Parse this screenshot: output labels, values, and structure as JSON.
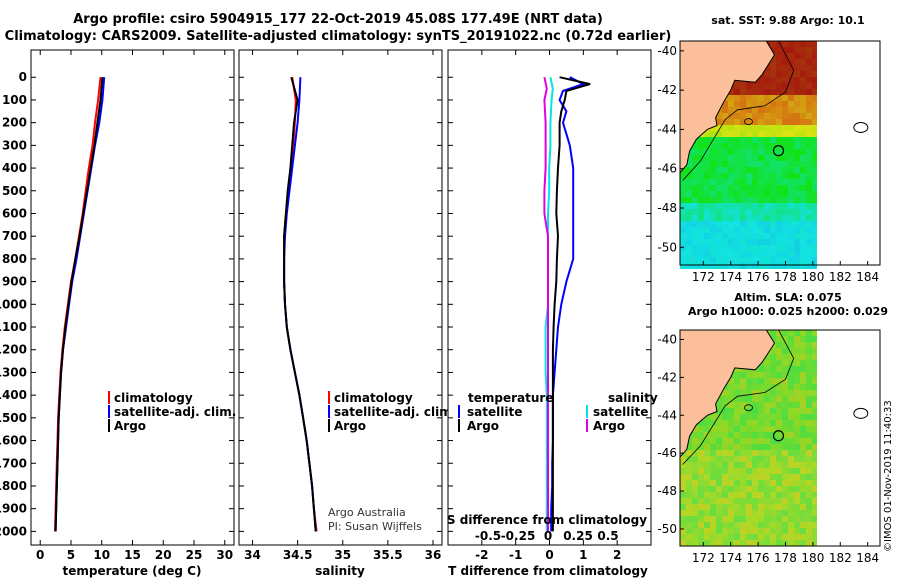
{
  "header": {
    "line1": "Argo profile: csiro 5904915_177 22-Oct-2019 45.08S 177.49E (NRT data)",
    "line2": "Climatology: CARS2009. Satellite-adjusted climatology: synTS_20191022.nc (0.72d earlier)"
  },
  "colors": {
    "red": "#ff0000",
    "blue": "#0000ff",
    "black": "#000000",
    "cyan": "#00e5e5",
    "magenta": "#e000e0"
  },
  "depth_axis": {
    "ticks": [
      "0",
      "100",
      "200",
      "300",
      "400",
      "500",
      "600",
      "700",
      "800",
      "900",
      "1000",
      "1100",
      "1200",
      "1300",
      "1400",
      "1500",
      "1600",
      "1700",
      "1800",
      "1900",
      "2000"
    ],
    "values": [
      0,
      100,
      200,
      300,
      400,
      500,
      600,
      700,
      800,
      900,
      1000,
      1100,
      1200,
      1300,
      1400,
      1500,
      1600,
      1700,
      1800,
      1900,
      2000
    ],
    "range": [
      -120,
      2060
    ]
  },
  "chart_data": [
    {
      "type": "line",
      "panel": "temperature",
      "xlabel": "temperature (deg C)",
      "xlim": [
        -1.5,
        31.5
      ],
      "xticks": [
        0,
        5,
        10,
        15,
        20,
        25,
        30
      ],
      "xtick_labels": [
        "0",
        "5",
        "10",
        "15",
        "20",
        "25",
        "30"
      ],
      "legend": [
        "climatology",
        "satellite-adj. clim.",
        "Argo"
      ],
      "series": [
        {
          "name": "climatology",
          "color": "red",
          "depth": [
            0,
            100,
            200,
            300,
            400,
            500,
            600,
            700,
            800,
            900,
            1000,
            1100,
            1200,
            1300,
            1400,
            1500,
            1600,
            1700,
            1800,
            1900,
            2000
          ],
          "values": [
            9.8,
            9.4,
            8.9,
            8.5,
            7.9,
            7.4,
            6.9,
            6.3,
            5.7,
            5.0,
            4.5,
            4.0,
            3.6,
            3.3,
            3.1,
            2.9,
            2.8,
            2.7,
            2.6,
            2.5,
            2.4
          ]
        },
        {
          "name": "satellite-adj. clim.",
          "color": "blue",
          "depth": [
            0,
            100,
            200,
            300,
            400,
            500,
            600,
            700,
            800,
            900,
            1000,
            1100,
            1200,
            1300,
            1400,
            1500,
            1600,
            1700,
            1800,
            1900,
            2000
          ],
          "values": [
            10.4,
            10.1,
            9.6,
            8.9,
            8.3,
            7.7,
            7.1,
            6.5,
            5.9,
            5.2,
            4.7,
            4.2,
            3.7,
            3.4,
            3.2,
            3.0,
            2.9,
            2.8,
            2.7,
            2.6,
            2.5
          ]
        },
        {
          "name": "Argo",
          "color": "black",
          "depth": [
            0,
            100,
            200,
            300,
            400,
            500,
            600,
            700,
            800,
            900,
            1000,
            1100,
            1200,
            1300,
            1400,
            1500,
            1600,
            1700,
            1800,
            1900,
            2000
          ],
          "values": [
            10.1,
            9.8,
            9.3,
            8.8,
            8.2,
            7.6,
            7.0,
            6.4,
            5.7,
            5.1,
            4.6,
            4.1,
            3.7,
            3.4,
            3.2,
            3.0,
            2.9,
            2.8,
            2.7,
            2.6,
            2.5
          ]
        }
      ]
    },
    {
      "type": "line",
      "panel": "salinity",
      "xlabel": "salinity",
      "xlim": [
        33.85,
        36.1
      ],
      "xticks": [
        34,
        34.5,
        35,
        35.5,
        36
      ],
      "xtick_labels": [
        "34",
        "34.5",
        "35",
        "35.5",
        "36"
      ],
      "legend": [
        "climatology",
        "satellite-adj. clim.",
        "Argo"
      ],
      "credit1": "Argo Australia",
      "credit2": "PI: Susan Wijffels",
      "series": [
        {
          "name": "climatology",
          "color": "red",
          "depth": [
            0,
            100,
            200,
            300,
            400,
            500,
            600,
            700,
            800,
            900,
            1000,
            1100,
            1200,
            1300,
            1400,
            1500,
            1600,
            1700,
            1800,
            1900,
            2000
          ],
          "values": [
            34.44,
            34.48,
            34.47,
            34.45,
            34.42,
            34.4,
            34.37,
            34.35,
            34.35,
            34.35,
            34.36,
            34.38,
            34.42,
            34.47,
            34.52,
            34.56,
            34.6,
            34.63,
            34.66,
            34.68,
            34.71
          ]
        },
        {
          "name": "satellite-adj. clim.",
          "color": "blue",
          "depth": [
            0,
            100,
            200,
            300,
            400,
            500,
            600,
            700,
            800,
            900,
            1000,
            1100,
            1200,
            1300,
            1400,
            1500,
            1600,
            1700,
            1800,
            1900,
            2000
          ],
          "values": [
            34.53,
            34.52,
            34.5,
            34.47,
            34.44,
            34.41,
            34.38,
            34.36,
            34.35,
            34.35,
            34.36,
            34.38,
            34.42,
            34.47,
            34.52,
            34.56,
            34.6,
            34.63,
            34.66,
            34.68,
            34.7
          ]
        },
        {
          "name": "Argo",
          "color": "black",
          "depth": [
            0,
            100,
            200,
            300,
            400,
            500,
            600,
            700,
            800,
            900,
            1000,
            1100,
            1200,
            1300,
            1400,
            1500,
            1600,
            1700,
            1800,
            1900,
            2000
          ],
          "values": [
            34.43,
            34.5,
            34.46,
            34.44,
            34.42,
            34.39,
            34.37,
            34.35,
            34.35,
            34.35,
            34.36,
            34.38,
            34.42,
            34.47,
            34.52,
            34.56,
            34.6,
            34.63,
            34.66,
            34.68,
            34.7
          ]
        }
      ]
    },
    {
      "type": "line",
      "panel": "difference",
      "xlabel": "T difference from climatology",
      "xlim": [
        -3,
        3
      ],
      "xticks": [
        -2,
        -1,
        0,
        1,
        2
      ],
      "xtick_labels": [
        "-2",
        "-1",
        "0",
        "1",
        "2"
      ],
      "s_axis_title": "S difference from climatology",
      "s_ticks": [
        -0.5,
        -0.25,
        0,
        0.25,
        0.5
      ],
      "s_tick_labels": [
        "-0.5",
        "-0.25",
        "0",
        "0.25",
        "0.5"
      ],
      "legend_left_title": "temperature",
      "legend_right_title": "salinity",
      "legend_left": [
        "satellite",
        "Argo"
      ],
      "legend_right": [
        "satellite",
        "Argo"
      ],
      "series": [
        {
          "name": "T satellite",
          "color": "blue",
          "depth": [
            0,
            30,
            60,
            100,
            150,
            200,
            300,
            400,
            500,
            600,
            700,
            800,
            900,
            1000,
            1100,
            1200,
            1300,
            1400,
            1500,
            1600,
            1700,
            1800,
            1900,
            2000
          ],
          "values": [
            0.6,
            1.0,
            0.4,
            0.3,
            0.5,
            0.4,
            0.6,
            0.7,
            0.7,
            0.7,
            0.7,
            0.7,
            0.5,
            0.35,
            0.25,
            0.2,
            0.15,
            0.1,
            0.1,
            0.1,
            0.08,
            0.08,
            0.05,
            0.05
          ]
        },
        {
          "name": "T Argo",
          "color": "black",
          "depth": [
            0,
            30,
            60,
            100,
            150,
            200,
            300,
            400,
            500,
            600,
            700,
            800,
            900,
            1000,
            1100,
            1200,
            1300,
            1400,
            1500,
            1600,
            1700,
            1800,
            1900,
            2000
          ],
          "values": [
            0.3,
            1.2,
            0.5,
            0.45,
            0.35,
            0.3,
            0.3,
            0.25,
            0.22,
            0.2,
            0.25,
            0.22,
            0.2,
            0.15,
            0.12,
            0.1,
            0.1,
            0.1,
            0.1,
            0.1,
            0.1,
            0.1,
            0.1,
            0.1
          ]
        },
        {
          "name": "S satellite",
          "color": "cyan",
          "depth": [
            0,
            50,
            100,
            200,
            300,
            400,
            500,
            600,
            700,
            800,
            900,
            1000,
            1100,
            1200,
            1300,
            1400,
            1500,
            1600,
            1700,
            1800,
            1900,
            2000
          ],
          "values": [
            0.02,
            0.04,
            0.03,
            0.02,
            0.02,
            0.01,
            0.01,
            0.0,
            0.0,
            0.0,
            0.0,
            0.0,
            -0.02,
            -0.02,
            -0.02,
            -0.01,
            -0.01,
            -0.01,
            -0.01,
            -0.01,
            -0.01,
            -0.01
          ]
        },
        {
          "name": "S Argo",
          "color": "magenta",
          "depth": [
            0,
            50,
            100,
            200,
            300,
            400,
            500,
            600,
            700,
            800,
            900,
            1000,
            1100,
            1200,
            1300,
            1400,
            1500,
            1600,
            1700,
            1800,
            1900,
            2000
          ],
          "values": [
            -0.03,
            -0.01,
            -0.03,
            -0.02,
            -0.02,
            -0.02,
            -0.03,
            -0.03,
            0.0,
            0.0,
            0.0,
            0.0,
            0.0,
            0.0,
            0.0,
            0.0,
            0.0,
            0.0,
            0.0,
            0.0,
            0.0,
            0.0
          ]
        }
      ]
    },
    {
      "type": "heatmap",
      "panel": "sst-map",
      "title": "sat. SST: 9.88 Argo: 10.1",
      "xticks": [
        172,
        174,
        176,
        178,
        180,
        182,
        184
      ],
      "xtick_labels": [
        "172",
        "174",
        "176",
        "178",
        "180",
        "182",
        "184"
      ],
      "yticks": [
        -40,
        -42,
        -44,
        -46,
        -48,
        -50
      ],
      "ytick_labels": [
        "-40",
        "-42",
        "-44",
        "-46",
        "-48",
        "-50"
      ],
      "xlim": [
        170.3,
        184.9
      ],
      "ylim": [
        -50.9,
        -39.5
      ],
      "data_limit_lon": 180.3,
      "float_position": [
        177.49,
        -45.08
      ]
    },
    {
      "type": "heatmap",
      "panel": "sla-map",
      "title1": "Altim. SLA: 0.075",
      "title2": "Argo h1000: 0.025 h2000: 0.029",
      "xticks": [
        172,
        174,
        176,
        178,
        180,
        182,
        184
      ],
      "xtick_labels": [
        "172",
        "174",
        "176",
        "178",
        "180",
        "182",
        "184"
      ],
      "yticks": [
        -40,
        -42,
        -44,
        -46,
        -48,
        -50
      ],
      "ytick_labels": [
        "-40",
        "-42",
        "-44",
        "-46",
        "-48",
        "-50"
      ],
      "xlim": [
        170.3,
        184.9
      ],
      "ylim": [
        -50.9,
        -39.5
      ],
      "data_limit_lon": 180.3,
      "float_position": [
        177.49,
        -45.08
      ]
    }
  ],
  "side_label": "©IMOS 01-Nov-2019 11:40:33"
}
